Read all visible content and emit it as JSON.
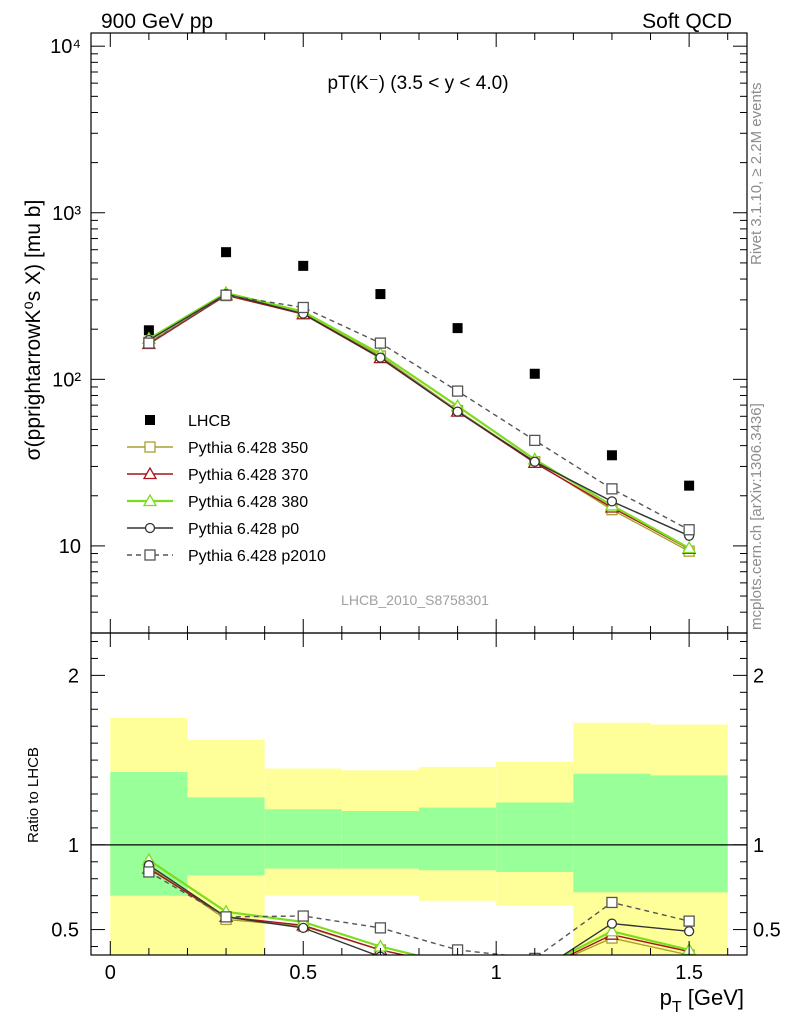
{
  "header": {
    "energy_label": "900 GeV pp",
    "process_label": "Soft QCD"
  },
  "side_labels": {
    "rivet": "Rivet 3.1.10, ≥ 2.2M events",
    "mcplots": "mcplots.cern.ch [arXiv:1306.3436]"
  },
  "chart_data": [
    {
      "type": "line",
      "panel": "main",
      "title": "pT(K⁻) (3.5 < y < 4.0)",
      "ylabel": "σ(pprightarrowK⁰s X) [mu b]",
      "xlabel": "",
      "analysis_label": "LHCB_2010_S8758301",
      "y_scale": "log",
      "xlim": [
        -0.05,
        1.65
      ],
      "ylim": [
        3,
        12000
      ],
      "x": [
        0.1,
        0.3,
        0.5,
        0.7,
        0.9,
        1.1,
        1.3,
        1.5
      ],
      "series": [
        {
          "name": "LHCB",
          "color": "#000000",
          "marker": "square-filled",
          "style": "points",
          "values": [
            197,
            580,
            480,
            325,
            203,
            108,
            35,
            23
          ]
        },
        {
          "name": "Pythia 6.428 350",
          "color": "#a8a030",
          "marker": "square-open",
          "style": "solid",
          "values": [
            167,
            318,
            248,
            138,
            65,
            32,
            16.5,
            9.3
          ]
        },
        {
          "name": "Pythia 6.428 370",
          "color": "#a8141e",
          "marker": "triangle-open",
          "style": "solid",
          "values": [
            163,
            320,
            246,
            134,
            64,
            31.5,
            17,
            9.6
          ]
        },
        {
          "name": "Pythia 6.428 380",
          "color": "#7cdc1e",
          "marker": "triangle-open",
          "style": "solid",
          "values": [
            175,
            330,
            255,
            142,
            69,
            33,
            17.5,
            9.7
          ]
        },
        {
          "name": "Pythia 6.428 p0",
          "color": "#333333",
          "marker": "circle-open",
          "style": "solid",
          "values": [
            172,
            325,
            248,
            135,
            64,
            32,
            18.5,
            11.5
          ]
        },
        {
          "name": "Pythia 6.428 p2010",
          "color": "#555555",
          "marker": "square-open",
          "style": "dashed",
          "values": [
            165,
            320,
            270,
            165,
            85,
            43,
            22,
            12.5
          ]
        }
      ],
      "y_ticks": [
        "10",
        "10²",
        "10³",
        "10⁴"
      ]
    },
    {
      "type": "line",
      "panel": "ratio",
      "ylabel": "Ratio to LHCB",
      "xlabel": "p_T [GeV]",
      "xlabel_main": "p",
      "xlabel_sub": "T",
      "xlabel_unit": " [GeV]",
      "xlim": [
        -0.05,
        1.65
      ],
      "ylim": [
        0.35,
        2.25
      ],
      "x_ticks": [
        "0",
        "0.5",
        "1",
        "1.5"
      ],
      "y_ticks": [
        "0.5",
        "1",
        "2"
      ],
      "bins": [
        [
          0.0,
          0.2
        ],
        [
          0.2,
          0.4
        ],
        [
          0.4,
          0.6
        ],
        [
          0.6,
          0.8
        ],
        [
          0.8,
          1.0
        ],
        [
          1.0,
          1.2
        ],
        [
          1.2,
          1.4
        ],
        [
          1.4,
          1.6
        ]
      ],
      "band_inner": [
        [
          0.7,
          1.43
        ],
        [
          0.82,
          1.28
        ],
        [
          0.86,
          1.21
        ],
        [
          0.86,
          1.2
        ],
        [
          0.85,
          1.22
        ],
        [
          0.84,
          1.25
        ],
        [
          0.72,
          1.42
        ],
        [
          0.72,
          1.41
        ]
      ],
      "band_outer": [
        [
          0.35,
          1.75
        ],
        [
          0.35,
          1.62
        ],
        [
          0.7,
          1.45
        ],
        [
          0.7,
          1.44
        ],
        [
          0.67,
          1.46
        ],
        [
          0.64,
          1.49
        ],
        [
          0.35,
          1.72
        ],
        [
          0.35,
          1.71
        ]
      ],
      "band_colors": {
        "outer": "#ffff99",
        "inner": "#99ff99"
      },
      "x": [
        0.1,
        0.3,
        0.5,
        0.7,
        0.9,
        1.1,
        1.3,
        1.5
      ],
      "series": [
        {
          "name": "Pythia 6.428 350",
          "values": [
            0.87,
            0.56,
            0.52,
            0.38,
            0.28,
            0.25,
            0.45,
            0.35
          ]
        },
        {
          "name": "Pythia 6.428 370",
          "values": [
            0.86,
            0.575,
            0.525,
            0.38,
            0.28,
            0.25,
            0.47,
            0.37
          ]
        },
        {
          "name": "Pythia 6.428 380",
          "values": [
            0.91,
            0.605,
            0.545,
            0.4,
            0.29,
            0.26,
            0.49,
            0.38
          ]
        },
        {
          "name": "Pythia 6.428 p0",
          "values": [
            0.88,
            0.575,
            0.51,
            0.34,
            0.275,
            0.24,
            0.535,
            0.49
          ]
        },
        {
          "name": "Pythia 6.428 p2010",
          "values": [
            0.84,
            0.575,
            0.58,
            0.51,
            0.38,
            0.33,
            0.66,
            0.55
          ]
        }
      ]
    }
  ]
}
